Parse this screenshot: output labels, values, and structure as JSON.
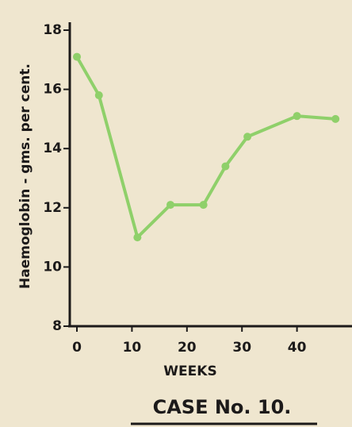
{
  "chart_data": {
    "type": "line",
    "title": "CASE No. 10.",
    "x_label": "WEEKS",
    "y_label": "Haemoglobin - gms. per cent.",
    "x": [
      0,
      4,
      11,
      17,
      23,
      27,
      31,
      40,
      47
    ],
    "series": [
      {
        "color": "#8fd06a",
        "values": [
          17.1,
          15.8,
          11.0,
          12.1,
          12.1,
          13.4,
          14.4,
          15.1,
          15.0
        ]
      }
    ],
    "xlim": [
      -1.3,
      50
    ],
    "xticks": [
      0,
      10,
      20,
      30,
      40
    ],
    "ylim": [
      8,
      18
    ],
    "yticks": [
      8,
      10,
      12,
      14,
      16,
      18
    ]
  }
}
